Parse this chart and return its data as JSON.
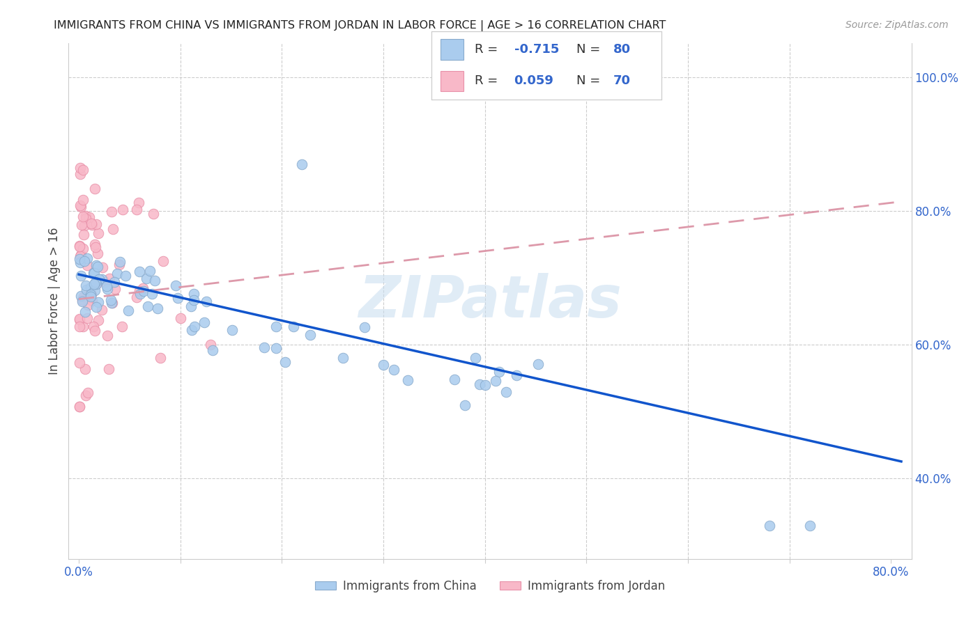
{
  "title": "IMMIGRANTS FROM CHINA VS IMMIGRANTS FROM JORDAN IN LABOR FORCE | AGE > 16 CORRELATION CHART",
  "source": "Source: ZipAtlas.com",
  "ylabel": "In Labor Force | Age > 16",
  "xlim": [
    -0.01,
    0.82
  ],
  "ylim": [
    0.28,
    1.05
  ],
  "china_color": "#aaccee",
  "china_edge": "#88aacc",
  "jordan_color": "#f8b8c8",
  "jordan_edge": "#e890a8",
  "china_line_color": "#1155cc",
  "jordan_line_color": "#dd99aa",
  "R_china": -0.715,
  "N_china": 80,
  "R_jordan": 0.059,
  "N_jordan": 70,
  "watermark": "ZIPatlas",
  "legend_label_color": "#3366cc",
  "legend_R_label": "R = ",
  "legend_N_label": "N = "
}
